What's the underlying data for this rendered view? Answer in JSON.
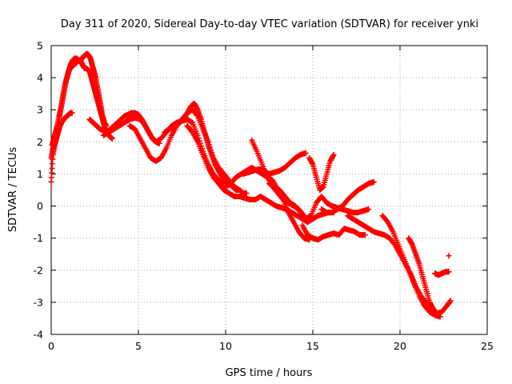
{
  "chart_data": {
    "type": "scatter",
    "title": "Day 311 of 2020, Sidereal Day-to-day VTEC variation (SDTVAR) for receiver ynki",
    "xlabel": "GPS time / hours",
    "ylabel": "SDTVAR / TECUs",
    "xlim": [
      0,
      25
    ],
    "ylim": [
      -4,
      5
    ],
    "xticks": [
      "0",
      "5",
      "10",
      "15",
      "20",
      "25"
    ],
    "yticks": [
      "-4",
      "-3",
      "-2",
      "-1",
      "0",
      "1",
      "2",
      "3",
      "4",
      "5"
    ],
    "grid": true,
    "marker": "+",
    "marker_color": "#ff0000",
    "series": [
      {
        "name": "track-1",
        "x": [
          0.0,
          0.1,
          0.2,
          0.3,
          0.4,
          0.5,
          0.6,
          0.7,
          0.8,
          0.9,
          1.0,
          1.1,
          1.2,
          1.3,
          1.4,
          1.5,
          1.6,
          1.7,
          1.8,
          1.9,
          2.0,
          2.1,
          2.2,
          2.3,
          2.4,
          2.5,
          2.6,
          2.7,
          2.8,
          2.9,
          3.0,
          3.1,
          3.2,
          3.3,
          3.4,
          3.5
        ],
        "y": [
          1.5,
          1.8,
          2.0,
          2.3,
          2.6,
          2.9,
          3.2,
          3.5,
          3.8,
          4.0,
          4.2,
          4.3,
          4.35,
          4.4,
          4.45,
          4.5,
          4.55,
          4.5,
          4.4,
          4.3,
          4.3,
          4.25,
          4.2,
          4.0,
          3.8,
          3.6,
          3.4,
          3.2,
          3.0,
          2.8,
          2.6,
          2.4,
          2.3,
          2.2,
          2.15,
          2.1
        ]
      },
      {
        "name": "track-2",
        "x": [
          0.05,
          0.15,
          0.25,
          0.35,
          0.45,
          0.55,
          0.65,
          0.75,
          0.85,
          0.95,
          1.05,
          1.15,
          1.25,
          1.35,
          1.45,
          1.55,
          1.65,
          1.75,
          1.85,
          1.95,
          2.05,
          2.15,
          2.25,
          2.35,
          2.45,
          2.55,
          2.65,
          2.75,
          2.85,
          2.95,
          3.05,
          3.15
        ],
        "y": [
          1.9,
          2.1,
          2.3,
          2.5,
          2.8,
          3.0,
          3.3,
          3.6,
          3.9,
          4.1,
          4.3,
          4.45,
          4.55,
          4.6,
          4.6,
          4.55,
          4.5,
          4.6,
          4.65,
          4.7,
          4.75,
          4.7,
          4.6,
          4.4,
          4.2,
          4.0,
          3.7,
          3.4,
          3.1,
          2.8,
          2.6,
          2.5
        ]
      },
      {
        "name": "track-3",
        "x": [
          0.0,
          0.1,
          0.2,
          0.3,
          0.4,
          0.5,
          0.6,
          0.7,
          0.8,
          0.9,
          1.0,
          1.1,
          1.2
        ],
        "y": [
          0.75,
          1.6,
          1.9,
          2.1,
          2.3,
          2.5,
          2.6,
          2.7,
          2.75,
          2.8,
          2.85,
          2.9,
          2.9
        ]
      },
      {
        "name": "track-4",
        "x": [
          2.2,
          2.4,
          2.6,
          2.8,
          3.0,
          3.2,
          3.4,
          3.6,
          3.8,
          4.0,
          4.2,
          4.4,
          4.6,
          4.8,
          5.0,
          5.2,
          5.4,
          5.6,
          5.8,
          6.0,
          6.2
        ],
        "y": [
          2.7,
          2.6,
          2.5,
          2.4,
          2.35,
          2.3,
          2.4,
          2.5,
          2.6,
          2.7,
          2.8,
          2.85,
          2.9,
          2.9,
          2.85,
          2.7,
          2.5,
          2.3,
          2.1,
          2.0,
          1.95
        ]
      },
      {
        "name": "track-5",
        "x": [
          3.0,
          3.3,
          3.6,
          3.9,
          4.2,
          4.5,
          4.8,
          5.1,
          5.4,
          5.7,
          6.0,
          6.3,
          6.6,
          6.9,
          7.2,
          7.5,
          7.8,
          8.1,
          8.4,
          8.7,
          9.0,
          9.3,
          9.6,
          9.9
        ],
        "y": [
          2.2,
          2.3,
          2.4,
          2.5,
          2.6,
          2.7,
          2.75,
          2.7,
          2.5,
          2.2,
          2.0,
          2.1,
          2.3,
          2.5,
          2.6,
          2.65,
          2.7,
          2.6,
          2.2,
          1.7,
          1.3,
          1.0,
          0.8,
          0.7
        ]
      },
      {
        "name": "track-6",
        "x": [
          4.5,
          4.8,
          5.1,
          5.4,
          5.7,
          6.0,
          6.3,
          6.6,
          6.9,
          7.2,
          7.5,
          7.8,
          8.1,
          8.4,
          8.7,
          9.0,
          9.3,
          9.6,
          9.9,
          10.2,
          10.5,
          10.8
        ],
        "y": [
          2.5,
          2.4,
          2.1,
          1.8,
          1.5,
          1.4,
          1.5,
          1.8,
          2.2,
          2.5,
          2.7,
          2.9,
          3.0,
          2.8,
          2.4,
          2.0,
          1.5,
          1.2,
          1.0,
          0.8,
          0.6,
          0.5
        ]
      },
      {
        "name": "track-7",
        "x": [
          6.5,
          6.8,
          7.1,
          7.4,
          7.7,
          8.0,
          8.2,
          8.4,
          8.6,
          8.8,
          9.0,
          9.2,
          9.4,
          9.6,
          9.8,
          10.0,
          10.2,
          10.4,
          10.6,
          10.8,
          11.0,
          11.2
        ],
        "y": [
          2.3,
          2.4,
          2.5,
          2.6,
          2.8,
          3.1,
          3.2,
          3.0,
          2.7,
          2.3,
          1.9,
          1.6,
          1.3,
          1.1,
          0.9,
          0.8,
          0.7,
          0.6,
          0.5,
          0.5,
          0.4,
          0.4
        ]
      },
      {
        "name": "track-8",
        "x": [
          7.8,
          8.1,
          8.4,
          8.7,
          9.0,
          9.3,
          9.6,
          9.9,
          10.2,
          10.5,
          10.8,
          11.1,
          11.4,
          11.7,
          12.0
        ],
        "y": [
          2.5,
          2.3,
          2.0,
          1.6,
          1.2,
          0.9,
          0.7,
          0.5,
          0.4,
          0.3,
          0.3,
          0.25,
          0.2,
          0.2,
          0.3
        ]
      },
      {
        "name": "track-9",
        "x": [
          10.0,
          10.3,
          10.6,
          10.9,
          11.2,
          11.5,
          11.8,
          12.1,
          12.4,
          12.7,
          13.0,
          13.3,
          13.6,
          13.9,
          14.2,
          14.5,
          14.8
        ],
        "y": [
          0.6,
          0.7,
          0.9,
          1.0,
          1.1,
          1.2,
          1.1,
          1.0,
          0.9,
          0.8,
          0.5,
          0.2,
          -0.2,
          -0.5,
          -0.8,
          -1.0,
          -1.05
        ]
      },
      {
        "name": "track-10",
        "x": [
          11.0,
          11.3,
          11.6,
          11.9,
          12.2,
          12.5,
          12.8,
          13.1,
          13.4,
          13.7,
          14.0,
          14.3,
          14.6
        ],
        "y": [
          1.0,
          1.05,
          1.1,
          1.15,
          1.1,
          1.0,
          1.05,
          1.1,
          1.2,
          1.35,
          1.5,
          1.6,
          1.65
        ]
      },
      {
        "name": "track-11",
        "x": [
          11.5,
          11.8,
          12.1,
          12.4,
          12.7,
          13.0,
          13.3,
          13.6,
          13.9,
          14.2,
          14.5
        ],
        "y": [
          2.05,
          1.7,
          1.3,
          0.9,
          0.6,
          0.4,
          0.2,
          0.1,
          0.0,
          -0.1,
          -0.3
        ]
      },
      {
        "name": "track-12",
        "x": [
          12.0,
          12.3,
          12.6,
          12.9,
          13.2,
          13.5,
          13.8,
          14.1,
          14.4,
          14.7,
          15.0,
          15.3,
          15.6,
          15.9,
          16.2
        ],
        "y": [
          0.3,
          0.2,
          0.1,
          0.0,
          -0.05,
          -0.1,
          -0.2,
          -0.3,
          -0.4,
          -0.5,
          -0.4,
          -0.3,
          -0.25,
          -0.2,
          -0.2
        ]
      },
      {
        "name": "track-13",
        "x": [
          12.5,
          12.8,
          13.1,
          13.4,
          13.7,
          14.0,
          14.3,
          14.6,
          14.9,
          15.2,
          15.5,
          15.8,
          16.1,
          16.4,
          16.7,
          17.0,
          17.3,
          17.6,
          17.9,
          18.2
        ],
        "y": [
          0.7,
          0.6,
          0.5,
          0.3,
          0.1,
          0.0,
          -0.2,
          -0.4,
          -0.3,
          0.1,
          0.3,
          0.1,
          0.0,
          -0.05,
          -0.1,
          -0.15,
          -0.2,
          -0.2,
          -0.15,
          -0.1
        ]
      },
      {
        "name": "track-14",
        "x": [
          14.8,
          15.0,
          15.2,
          15.4,
          15.6,
          15.8,
          16.0,
          16.2
        ],
        "y": [
          1.5,
          1.3,
          0.9,
          0.5,
          0.6,
          1.0,
          1.4,
          1.6
        ]
      },
      {
        "name": "track-15",
        "x": [
          14.4,
          14.7,
          15.0,
          15.3,
          15.6,
          15.9,
          16.2,
          16.5,
          16.8,
          17.1,
          17.4,
          17.7,
          18.0
        ],
        "y": [
          -0.6,
          -0.9,
          -1.0,
          -1.05,
          -0.95,
          -0.9,
          -0.85,
          -0.9,
          -0.7,
          -0.75,
          -0.8,
          -0.9,
          -0.9
        ]
      },
      {
        "name": "track-16",
        "x": [
          15.5,
          15.8,
          16.1,
          16.4,
          16.7,
          17.0,
          17.3,
          17.6,
          17.9,
          18.2,
          18.5
        ],
        "y": [
          -0.1,
          -0.2,
          -0.2,
          -0.1,
          0.0,
          0.2,
          0.35,
          0.5,
          0.6,
          0.7,
          0.75
        ]
      },
      {
        "name": "track-17",
        "x": [
          17.0,
          17.3,
          17.6,
          17.9,
          18.2,
          18.5,
          18.8,
          19.1,
          19.4,
          19.7,
          20.0,
          20.3,
          20.6,
          20.9,
          21.2,
          21.5,
          21.8,
          22.1,
          22.4,
          22.7,
          22.9
        ],
        "y": [
          -0.3,
          -0.4,
          -0.5,
          -0.6,
          -0.7,
          -0.8,
          -0.85,
          -0.9,
          -1.0,
          -1.2,
          -1.5,
          -1.8,
          -2.1,
          -2.5,
          -2.8,
          -3.0,
          -3.2,
          -3.35,
          -3.3,
          -3.1,
          -2.95
        ]
      },
      {
        "name": "track-18",
        "x": [
          19.0,
          19.3,
          19.6,
          19.9,
          20.2,
          20.5,
          20.8,
          21.1,
          21.4,
          21.7,
          22.0,
          22.3
        ],
        "y": [
          -0.3,
          -0.5,
          -0.8,
          -1.2,
          -1.6,
          -2.0,
          -2.4,
          -2.8,
          -3.1,
          -3.3,
          -3.4,
          -3.45
        ]
      },
      {
        "name": "track-19",
        "x": [
          20.5,
          20.7,
          20.9,
          21.1,
          21.3,
          21.5,
          21.7,
          21.9,
          22.1
        ],
        "y": [
          -1.0,
          -1.2,
          -1.5,
          -1.8,
          -2.2,
          -2.6,
          -3.0,
          -3.2,
          -3.35
        ]
      },
      {
        "name": "track-20",
        "x": [
          22.0,
          22.2,
          22.4,
          22.6,
          22.8
        ],
        "y": [
          -2.1,
          -2.15,
          -2.1,
          -2.05,
          -2.05
        ]
      },
      {
        "name": "track-21",
        "x": [
          22.8
        ],
        "y": [
          -1.55
        ]
      }
    ]
  }
}
